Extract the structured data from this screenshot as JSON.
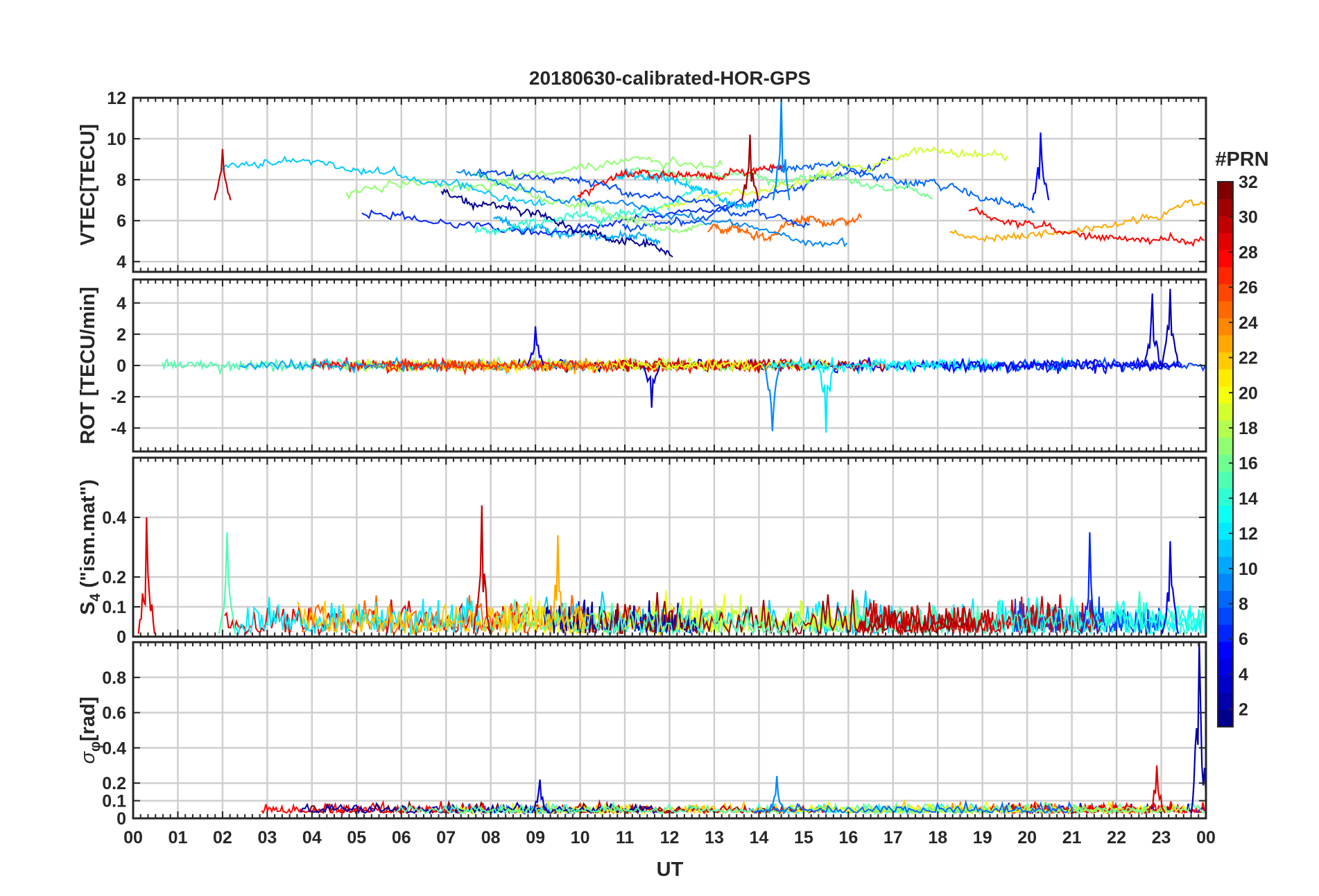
{
  "chart_data": {
    "type": "line",
    "title": "20180630-calibrated-HOR-GPS",
    "xlabel": "UT",
    "x_ticks": [
      "00",
      "01",
      "02",
      "03",
      "04",
      "05",
      "06",
      "07",
      "08",
      "09",
      "10",
      "11",
      "12",
      "13",
      "14",
      "15",
      "16",
      "17",
      "18",
      "19",
      "20",
      "21",
      "22",
      "23",
      "00"
    ],
    "xlim_hours": [
      0,
      24
    ],
    "colorbar": {
      "label": "#PRN",
      "colormap": "jet",
      "range": [
        1,
        32
      ],
      "ticks": [
        "2",
        "4",
        "6",
        "8",
        "10",
        "12",
        "14",
        "16",
        "18",
        "20",
        "22",
        "24",
        "26",
        "28",
        "30",
        "32"
      ],
      "colors": [
        "#00008f",
        "#0000ff",
        "#0080ff",
        "#00ffff",
        "#80ff80",
        "#ffff00",
        "#ff8000",
        "#ff0000",
        "#800000"
      ]
    },
    "panels": [
      {
        "id": "vtec",
        "ylabel": "VTEC[TECU]",
        "ylim": [
          3.5,
          12
        ],
        "yticks": [
          "4",
          "6",
          "8",
          "10",
          "12"
        ],
        "typical_range": [
          5,
          9
        ],
        "peaks": [
          {
            "hour": 2.0,
            "value": 9.5,
            "prn": 30
          },
          {
            "hour": 13.8,
            "value": 10.2,
            "prn": 31
          },
          {
            "hour": 14.5,
            "value": 12,
            "prn": 9
          },
          {
            "hour": 20.3,
            "value": 10.3,
            "prn": 5
          }
        ]
      },
      {
        "id": "rot",
        "ylabel": "ROT [TECU/min]",
        "ylim": [
          -5.5,
          5.5
        ],
        "yticks": [
          "-4",
          "-2",
          "0",
          "2",
          "4"
        ],
        "typical_range": [
          -0.3,
          0.3
        ],
        "peaks": [
          {
            "hour": 9.0,
            "value": 2.5,
            "prn": 4
          },
          {
            "hour": 11.6,
            "value": -2.7,
            "prn": 3
          },
          {
            "hour": 14.3,
            "value": -4.2,
            "prn": 9
          },
          {
            "hour": 15.5,
            "value": -4.3,
            "prn": 12
          },
          {
            "hour": 22.8,
            "value": 4.6,
            "prn": 3
          },
          {
            "hour": 23.2,
            "value": 4.9,
            "prn": 2
          }
        ]
      },
      {
        "id": "s4",
        "ylabel": "S4 (\"ism.mat\")",
        "ylabel_main": "S",
        "ylabel_sub": "4",
        "ylabel_rest": " (\"ism.mat\")",
        "ylim": [
          0,
          0.6
        ],
        "yticks": [
          "0",
          "0.1",
          "0.2",
          "0.4"
        ],
        "typical_range": [
          0.01,
          0.12
        ],
        "peaks": [
          {
            "hour": 0.3,
            "value": 0.4,
            "prn": 29
          },
          {
            "hour": 2.1,
            "value": 0.35,
            "prn": 15
          },
          {
            "hour": 7.8,
            "value": 0.44,
            "prn": 30
          },
          {
            "hour": 9.5,
            "value": 0.34,
            "prn": 23
          },
          {
            "hour": 21.4,
            "value": 0.35,
            "prn": 6
          },
          {
            "hour": 23.2,
            "value": 0.32,
            "prn": 4
          }
        ]
      },
      {
        "id": "sigma_phi",
        "ylabel": "σφ[rad]",
        "ylabel_main": "σ",
        "ylabel_sub": "φ",
        "ylabel_rest": "[rad]",
        "ylim": [
          0,
          1.0
        ],
        "yticks": [
          "0",
          "0.1",
          "0.2",
          "0.4",
          "0.6",
          "0.8"
        ],
        "typical_range": [
          0.03,
          0.08
        ],
        "peaks": [
          {
            "hour": 9.1,
            "value": 0.22,
            "prn": 3
          },
          {
            "hour": 14.4,
            "value": 0.24,
            "prn": 9
          },
          {
            "hour": 22.9,
            "value": 0.3,
            "prn": 29
          },
          {
            "hour": 23.85,
            "value": 1.0,
            "prn": 2
          }
        ]
      }
    ]
  }
}
